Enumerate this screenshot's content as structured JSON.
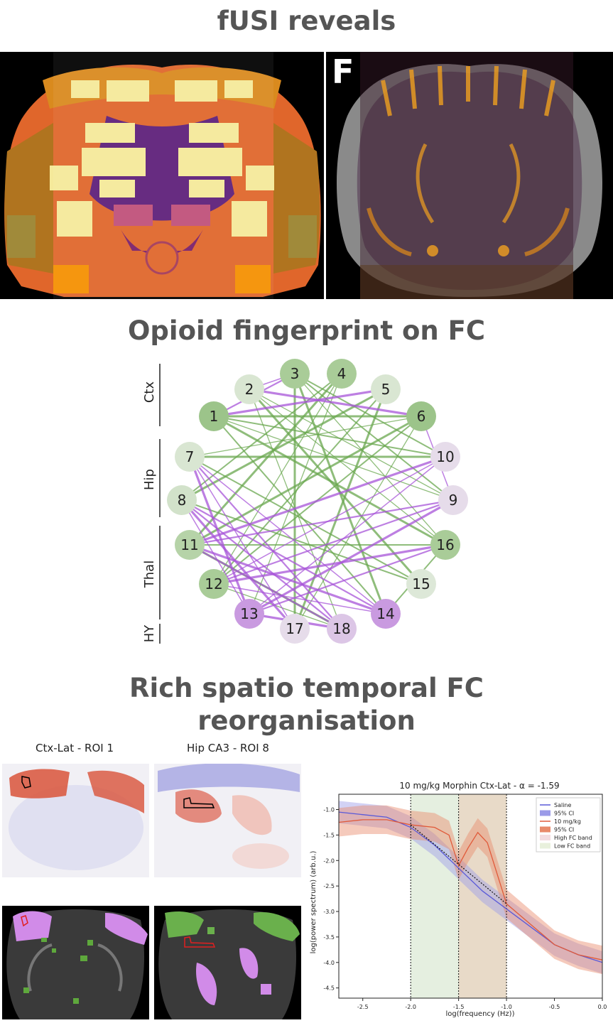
{
  "sections": {
    "fusi_title": "fUSI reveals",
    "opioid_title": "Opioid fingerprint on FC",
    "rich_title_line1": "Rich spatio temporal FC",
    "rich_title_line2": "reorganisation"
  },
  "atlas_panel": {
    "panel_letter": "F"
  },
  "chord": {
    "group_labels": [
      "Ctx",
      "Hip",
      "Thal",
      "HY"
    ],
    "node_labels": [
      "1",
      "2",
      "3",
      "4",
      "5",
      "6",
      "7",
      "8",
      "9",
      "10",
      "11",
      "12",
      "13",
      "14",
      "15",
      "16",
      "17",
      "18"
    ],
    "colors": {
      "green_edge": "#6aa84f",
      "purple_edge": "#a855d9",
      "green_node": "#9cc48a",
      "purple_node": "#c99ae0"
    }
  },
  "maps": {
    "map1_title": "Ctx-Lat - ROI 1",
    "map2_title": "Hip CA3 - ROI 8"
  },
  "chart_data": {
    "type": "line",
    "title": "10 mg/kg Morphin Ctx-Lat - α = -1.59",
    "xlabel": "log(frequency (Hz))",
    "ylabel": "log(power spectrum) (arb.u.)",
    "xlim": [
      -2.75,
      0.0
    ],
    "ylim": [
      -4.7,
      -0.7
    ],
    "xticks": [
      "-2.5",
      "-2.0",
      "-1.5",
      "-1.0",
      "-0.5",
      "0.0"
    ],
    "yticks": [
      "-1.0",
      "-1.5",
      "-2.0",
      "-2.5",
      "-3.0",
      "-3.5",
      "-4.0",
      "-4.5"
    ],
    "legend": [
      "Saline",
      "95% CI",
      "10 mg/kg",
      "95% CI",
      "High FC band",
      "Low FC band"
    ],
    "legend_position": "top-right",
    "vlines": [
      -2.0,
      -1.5,
      -1.0
    ],
    "bands": [
      {
        "name": "Low FC band",
        "from": -2.0,
        "to": -1.5
      },
      {
        "name": "High FC band",
        "from": -1.5,
        "to": -1.0
      }
    ],
    "series": [
      {
        "name": "Saline",
        "x": [
          -2.75,
          -2.5,
          -2.25,
          -2.0,
          -1.75,
          -1.5,
          -1.25,
          -1.0,
          -0.75,
          -0.5,
          -0.25,
          0.0
        ],
        "y": [
          -1.05,
          -1.1,
          -1.15,
          -1.35,
          -1.7,
          -2.15,
          -2.6,
          -2.95,
          -3.3,
          -3.65,
          -3.85,
          -4.0
        ]
      },
      {
        "name": "10 mg/kg",
        "x": [
          -2.75,
          -2.5,
          -2.25,
          -2.0,
          -1.75,
          -1.6,
          -1.5,
          -1.4,
          -1.3,
          -1.2,
          -1.0,
          -0.75,
          -0.5,
          -0.25,
          0.0
        ],
        "y": [
          -1.25,
          -1.2,
          -1.2,
          -1.3,
          -1.35,
          -1.5,
          -2.1,
          -1.75,
          -1.45,
          -1.65,
          -2.85,
          -3.25,
          -3.65,
          -3.85,
          -3.95
        ]
      }
    ]
  }
}
